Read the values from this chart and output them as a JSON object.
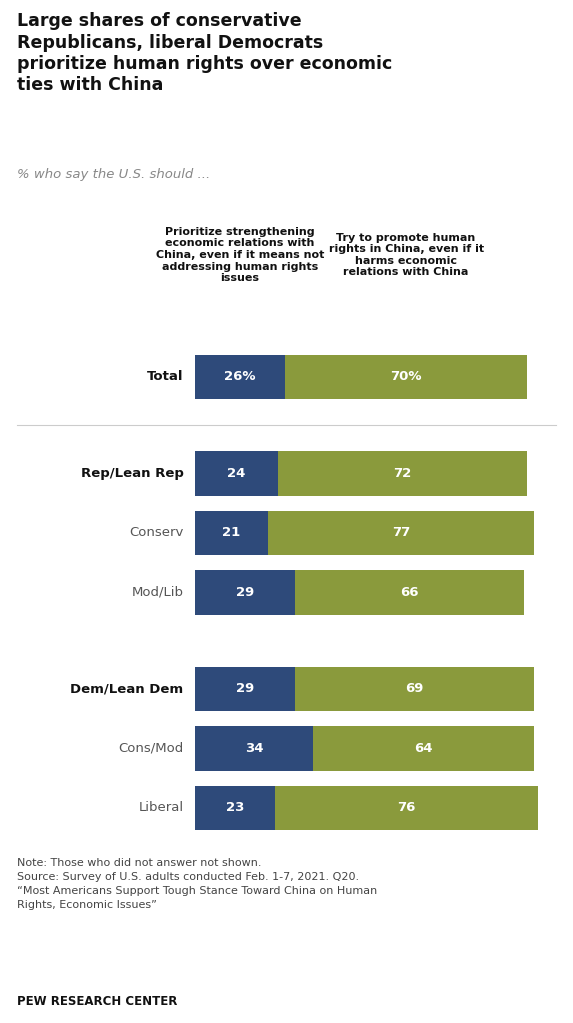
{
  "title_lines": [
    "Large shares of conservative",
    "Republicans, liberal Democrats",
    "prioritize human rights over economic",
    "ties with China"
  ],
  "subtitle": "% who say the U.S. should ...",
  "col1_header": "Prioritize strengthening\neconomic relations with\nChina, even if it means not\naddressing human rights\nissues",
  "col2_header": "Try to promote human\nrights in China, even if it\nharms economic\nrelations with China",
  "categories": [
    "Total",
    "Rep/Lean Rep",
    "Conserv",
    "Mod/Lib",
    "Dem/Lean Dem",
    "Cons/Mod",
    "Liberal"
  ],
  "blue_values": [
    26,
    24,
    21,
    29,
    29,
    34,
    23
  ],
  "green_values": [
    70,
    72,
    77,
    66,
    69,
    64,
    76
  ],
  "blue_labels": [
    "26%",
    "24",
    "21",
    "29",
    "29",
    "34",
    "23"
  ],
  "green_labels": [
    "70%",
    "72",
    "77",
    "66",
    "69",
    "64",
    "76"
  ],
  "blue_color": "#2E4A7A",
  "green_color": "#8A9A3C",
  "note_text": "Note: Those who did not answer not shown.\nSource: Survey of U.S. adults conducted Feb. 1-7, 2021. Q20.\n“Most Americans Support Tough Stance Toward China on Human\nRights, Economic Issues”",
  "footer": "PEW RESEARCH CENTER",
  "bold_rows": [
    0,
    1,
    4
  ],
  "gray_rows": [
    2,
    3,
    5,
    6
  ],
  "has_gap_after": [
    0
  ],
  "gap_between_groups": [
    1
  ],
  "figsize": [
    5.73,
    10.23
  ],
  "dpi": 100
}
